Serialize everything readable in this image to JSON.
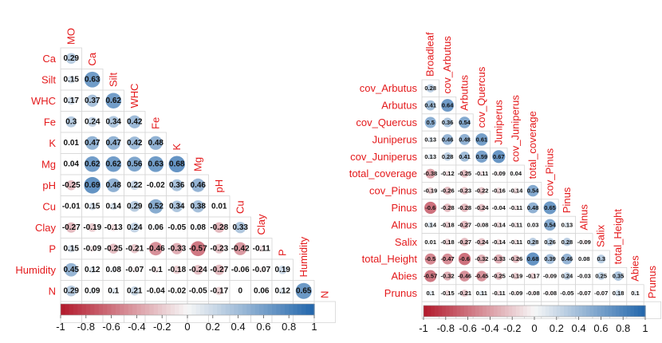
{
  "chart_data": [
    {
      "type": "heatmap",
      "variables": [
        "MO",
        "Ca",
        "Silt",
        "WHC",
        "Fe",
        "K",
        "Mg",
        "pH",
        "Cu",
        "Clay",
        "P",
        "Humidity",
        "N"
      ],
      "lower_triangle": [
        [
          "0.29"
        ],
        [
          "0.15",
          "0.63"
        ],
        [
          "0.17",
          "0.37",
          "0.62"
        ],
        [
          "0.3",
          "0.24",
          "0.34",
          "0.42"
        ],
        [
          "0.01",
          "0.47",
          "0.47",
          "0.42",
          "0.48"
        ],
        [
          "0.04",
          "0.62",
          "0.62",
          "0.56",
          "0.63",
          "0.68"
        ],
        [
          "-0.25",
          "0.69",
          "0.48",
          "0.22",
          "-0.02",
          "0.36",
          "0.46"
        ],
        [
          "-0.01",
          "0.15",
          "0.14",
          "0.29",
          "0.52",
          "0.34",
          "0.38",
          "0.01"
        ],
        [
          "-0.27",
          "-0.19",
          "-0.13",
          "0.24",
          "0.06",
          "-0.05",
          "0.08",
          "-0.28",
          "0.33"
        ],
        [
          "0.15",
          "-0.09",
          "-0.25",
          "-0.21",
          "-0.46",
          "-0.33",
          "-0.57",
          "-0.23",
          "-0.42",
          "-0.11"
        ],
        [
          "0.45",
          "0.12",
          "0.08",
          "-0.07",
          "-0.1",
          "-0.18",
          "-0.24",
          "-0.27",
          "-0.06",
          "-0.07",
          "0.19"
        ],
        [
          "0.29",
          "0.09",
          "0.1",
          "0.21",
          "-0.04",
          "-0.02",
          "-0.05",
          "-0.17",
          "0",
          "0.06",
          "0.12",
          "0.65"
        ]
      ],
      "color_scale": {
        "min": -1,
        "max": 1,
        "negative": "#b2182b",
        "zero": "#f7f7f7",
        "positive": "#2166ac"
      },
      "colorbar_ticks": [
        "-1",
        "-0.8",
        "-0.6",
        "-0.4",
        "-0.2",
        "0",
        "0.2",
        "0.4",
        "0.6",
        "0.8",
        "1"
      ]
    },
    {
      "type": "heatmap",
      "variables": [
        "Broadleaf",
        "cov_Arbutus",
        "Arbutus",
        "cov_Quercus",
        "Juniperus",
        "cov_Juniperus",
        "total_coverage",
        "cov_Pinus",
        "Pinus",
        "Alnus",
        "Salix",
        "total_Height",
        "Abies",
        "Prunus"
      ],
      "lower_triangle": [
        [
          "0.28"
        ],
        [
          "0.41",
          "0.64"
        ],
        [
          "0.5",
          "0.36",
          "0.54"
        ],
        [
          "0.13",
          "0.46",
          "0.48",
          "0.61"
        ],
        [
          "0.13",
          "0.28",
          "0.41",
          "0.59",
          "0.67"
        ],
        [
          "-0.38",
          "-0.12",
          "-0.25",
          "-0.11",
          "-0.09",
          "0.04"
        ],
        [
          "-0.19",
          "-0.26",
          "-0.23",
          "-0.22",
          "-0.16",
          "-0.14",
          "0.54"
        ],
        [
          "-0.6",
          "-0.28",
          "-0.28",
          "-0.24",
          "-0.04",
          "-0.11",
          "0.48",
          "0.65"
        ],
        [
          "0.14",
          "-0.18",
          "-0.27",
          "-0.08",
          "-0.14",
          "-0.11",
          "0.03",
          "0.54",
          "0.13"
        ],
        [
          "0.01",
          "-0.18",
          "-0.27",
          "-0.24",
          "-0.14",
          "-0.11",
          "0.28",
          "0.26",
          "0.28",
          "-0.09"
        ],
        [
          "-0.5",
          "-0.47",
          "-0.6",
          "-0.32",
          "-0.33",
          "-0.26",
          "0.68",
          "0.39",
          "0.46",
          "0.08",
          "0.3"
        ],
        [
          "-0.57",
          "-0.32",
          "-0.46",
          "-0.45",
          "-0.25",
          "-0.19",
          "-0.17",
          "-0.09",
          "0.24",
          "-0.03",
          "0.25",
          "0.35"
        ],
        [
          "0.1",
          "-0.15",
          "-0.21",
          "0.11",
          "-0.11",
          "-0.09",
          "-0.08",
          "-0.08",
          "-0.05",
          "-0.07",
          "-0.07",
          "0.18",
          "0.1"
        ]
      ],
      "color_scale": {
        "min": -1,
        "max": 1,
        "negative": "#b2182b",
        "zero": "#f7f7f7",
        "positive": "#2166ac"
      },
      "colorbar_ticks": [
        "-1",
        "-0.8",
        "-0.6",
        "-0.4",
        "-0.2",
        "0",
        "0.2",
        "0.4",
        "0.6",
        "0.8",
        "1"
      ]
    }
  ]
}
